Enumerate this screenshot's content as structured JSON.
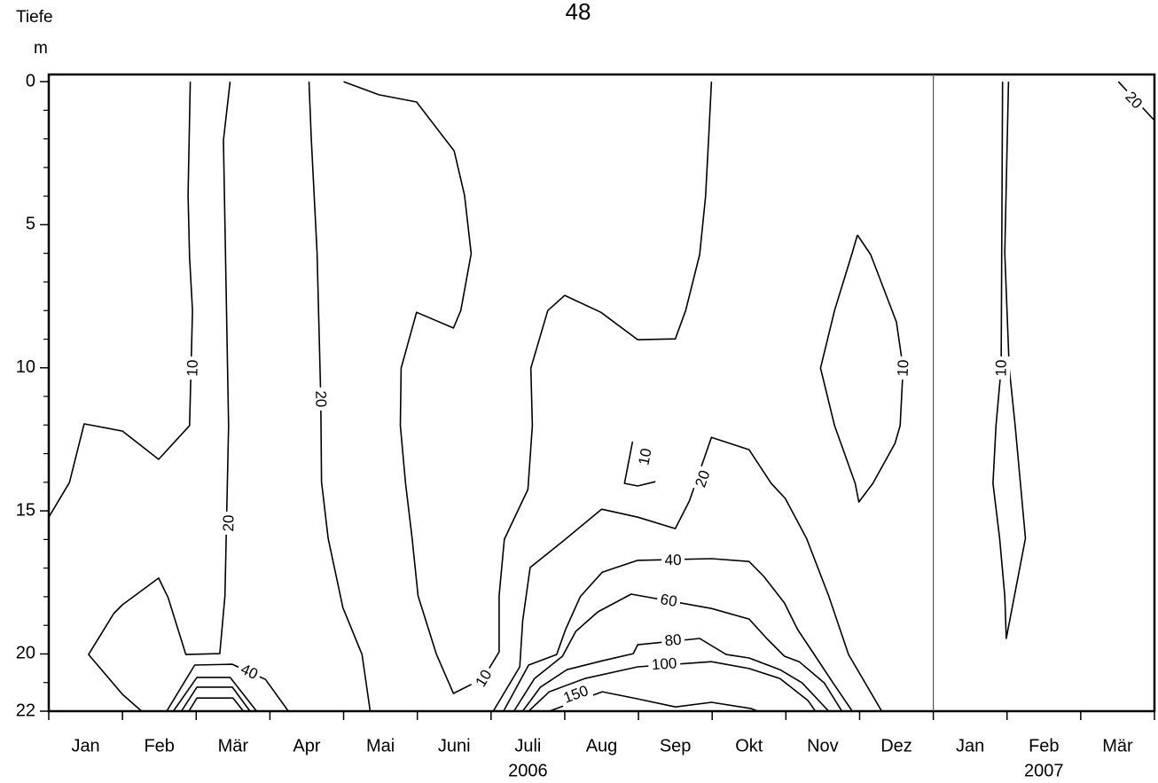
{
  "page_number": "48",
  "chart_data": {
    "type": "contour",
    "y_label": "Tiefe",
    "y_unit": "m",
    "categories": [
      "Jan",
      "Feb",
      "Mär",
      "Apr",
      "Mai",
      "Juni",
      "Juli",
      "Aug",
      "Sep",
      "Okt",
      "Nov",
      "Dez",
      "Jan",
      "Feb",
      "Mär"
    ],
    "x_group_labels": [
      {
        "label": "2006",
        "category": 6
      },
      {
        "label": "2007",
        "category": 13
      }
    ],
    "xlim": [
      0,
      15
    ],
    "ylim": [
      -0.25,
      22
    ],
    "y_inverted": true,
    "yticks": [
      0,
      5,
      10,
      15,
      20,
      22
    ],
    "yminorticks": [
      1,
      2,
      3,
      4,
      6,
      7,
      8,
      9,
      11,
      12,
      13,
      14,
      16,
      17,
      18,
      19,
      21
    ],
    "divider_x": 12,
    "color": "#000000",
    "contours": [
      {
        "level": 10,
        "x": [
          0,
          0.28,
          0.48,
          1.0,
          1.49,
          1.91,
          1.95,
          1.91,
          1.89,
          1.92
        ],
        "y": [
          15.22,
          14.01,
          11.96,
          12.21,
          13.2,
          12.02,
          8.0,
          6.14,
          3.97,
          0
        ],
        "label_pos": [
          1.95,
          10.01
        ]
      },
      {
        "level": 20,
        "x": [
          1.26,
          1.0,
          0.54,
          0.88,
          1.0,
          1.49,
          1.62,
          1.86,
          2.32,
          2.39,
          2.44,
          2.37,
          2.46
        ],
        "y": [
          22,
          21.41,
          20.02,
          18.59,
          18.28,
          17.35,
          18.04,
          20.02,
          19.99,
          17.97,
          12.02,
          2.05,
          0
        ],
        "label_pos": [
          2.44,
          15.43
        ]
      },
      {
        "level": 40,
        "x": [
          1.6,
          1.98,
          2.49,
          2.94,
          3.25
        ],
        "y": [
          22,
          20.39,
          20.36,
          20.89,
          22
        ],
        "label_pos": [
          2.72,
          20.62
        ]
      },
      {
        "x": [
          1.69,
          2.01,
          2.46,
          2.82
        ],
        "y": [
          22,
          20.82,
          20.82,
          22
        ]
      },
      {
        "x": [
          1.8,
          2.01,
          2.49,
          2.73
        ],
        "y": [
          22,
          21.16,
          21.16,
          22
        ]
      },
      {
        "x": [
          1.9,
          2.01,
          2.5,
          2.64
        ],
        "y": [
          22,
          21.54,
          21.54,
          22
        ]
      },
      {
        "level": 20,
        "x": [
          3.53,
          3.56,
          3.64,
          3.69,
          3.7,
          3.79,
          3.99,
          4.25,
          4.36
        ],
        "y": [
          0,
          1.95,
          5.98,
          11.09,
          13.98,
          15.96,
          18.38,
          20.02,
          22
        ],
        "label_pos": [
          3.69,
          11.09
        ]
      },
      {
        "level": 10,
        "x": [
          4.0,
          4.48,
          4.99,
          5.5,
          5.64,
          5.73,
          5.59,
          5.49,
          4.99,
          4.78,
          4.77,
          4.84,
          4.93,
          5.01,
          5.26,
          5.49,
          5.89,
          6.11,
          6.11,
          6.18,
          6.5,
          6.56,
          6.54,
          6.77,
          7.0,
          7.49,
          7.99,
          8.5,
          8.64,
          8.83,
          8.91,
          8.95,
          8.99
        ],
        "y": [
          0,
          0.46,
          0.71,
          2.42,
          3.97,
          6.01,
          8.0,
          8.61,
          8.06,
          10.01,
          12.02,
          14.04,
          15.96,
          17.97,
          20.02,
          21.38,
          20.86,
          19.93,
          17.97,
          15.99,
          14.25,
          12.02,
          10.01,
          8.0,
          7.47,
          8.06,
          9.02,
          8.99,
          8.0,
          6.04,
          4.03,
          2.11,
          0
        ],
        "label_pos": [
          5.9,
          20.85
        ]
      },
      {
        "level": 10,
        "x": [
          7.92,
          7.81,
          7.99,
          8.23
        ],
        "y": [
          12.58,
          14.04,
          14.13,
          13.98
        ],
        "label_pos": [
          8.09,
          13.11
        ]
      },
      {
        "level": 20,
        "x": [
          6.03,
          6.39,
          6.43,
          6.53,
          6.98,
          7.5,
          7.99,
          8.5,
          8.69,
          8.99,
          9.5,
          9.8,
          9.99,
          10.28,
          10.58,
          10.85,
          11.3
        ],
        "y": [
          22,
          20.45,
          18.84,
          16.98,
          16.05,
          14.94,
          15.22,
          15.62,
          14.66,
          12.43,
          12.86,
          14.04,
          14.56,
          15.96,
          17.97,
          20.02,
          22
        ],
        "label_pos": [
          8.87,
          13.88
        ]
      },
      {
        "level": 40,
        "x": [
          6.17,
          6.51,
          6.89,
          7.01,
          7.21,
          7.51,
          7.99,
          8.99,
          9.5,
          9.7,
          9.98,
          10.16,
          10.4,
          10.64,
          10.9
        ],
        "y": [
          22,
          20.39,
          20.02,
          19.15,
          18.0,
          17.14,
          16.73,
          16.67,
          16.77,
          17.29,
          18.22,
          19.15,
          20.08,
          21.01,
          22
        ],
        "label_pos": [
          8.47,
          16.72
        ]
      },
      {
        "level": 60,
        "x": [
          6.31,
          6.59,
          6.97,
          7.15,
          7.45,
          7.9,
          8.99,
          9.5,
          9.74,
          9.98,
          10.18,
          10.52,
          10.76
        ],
        "y": [
          22,
          20.86,
          20.08,
          19.21,
          18.53,
          17.91,
          18.41,
          18.78,
          19.46,
          20.08,
          20.27,
          21.01,
          22
        ],
        "label_pos": [
          8.41,
          18.13
        ]
      },
      {
        "level": 80,
        "x": [
          6.43,
          6.67,
          7.03,
          7.51,
          7.93,
          7.99,
          8.83,
          9.19,
          9.5,
          9.92,
          10.22,
          10.58
        ],
        "y": [
          22,
          21.16,
          20.55,
          20.24,
          19.99,
          19.68,
          19.46,
          20.02,
          20.14,
          20.55,
          21.01,
          22
        ],
        "label_pos": [
          8.47,
          19.52
        ]
      },
      {
        "level": 100,
        "x": [
          6.51,
          6.79,
          7.27,
          7.99,
          8.99,
          9.5,
          9.92,
          10.3,
          10.4
        ],
        "y": [
          22,
          21.32,
          20.86,
          20.45,
          20.27,
          20.51,
          20.86,
          21.63,
          22
        ],
        "label_pos": [
          8.35,
          20.35
        ]
      },
      {
        "level": 150,
        "x": [
          6.79,
          7.51,
          7.99,
          8.5,
          8.99,
          9.53,
          9.62
        ],
        "y": [
          22,
          21.32,
          21.57,
          21.85,
          21.69,
          21.91,
          22
        ],
        "label_pos": [
          7.15,
          21.41
        ]
      },
      {
        "level": 10,
        "x": [
          10.97,
          10.9,
          10.66,
          10.47,
          10.66,
          10.94,
          10.99,
          11.18,
          11.48,
          11.55,
          11.59,
          11.5,
          11.15,
          10.97
        ],
        "y": [
          5.36,
          5.98,
          8.0,
          10.01,
          12.02,
          14.04,
          14.69,
          14.04,
          12.64,
          12.02,
          10.01,
          8.4,
          6.04,
          5.36
        ],
        "label_pos": [
          11.59,
          10.01
        ]
      },
      {
        "level": 10,
        "x": [
          12.94,
          12.92,
          12.85,
          12.81,
          12.9,
          12.97,
          12.99,
          13.25,
          13.11,
          13.03,
          12.97,
          13.02
        ],
        "y": [
          0,
          10.01,
          12.02,
          14.04,
          15.96,
          17.97,
          19.46,
          15.96,
          12.02,
          10.01,
          5.98,
          0
        ],
        "label_pos": [
          12.92,
          10.01
        ]
      },
      {
        "level": 20,
        "x": [
          14.51,
          14.99
        ],
        "y": [
          0,
          1.33
        ],
        "label_pos": [
          14.72,
          0.65
        ]
      }
    ]
  }
}
